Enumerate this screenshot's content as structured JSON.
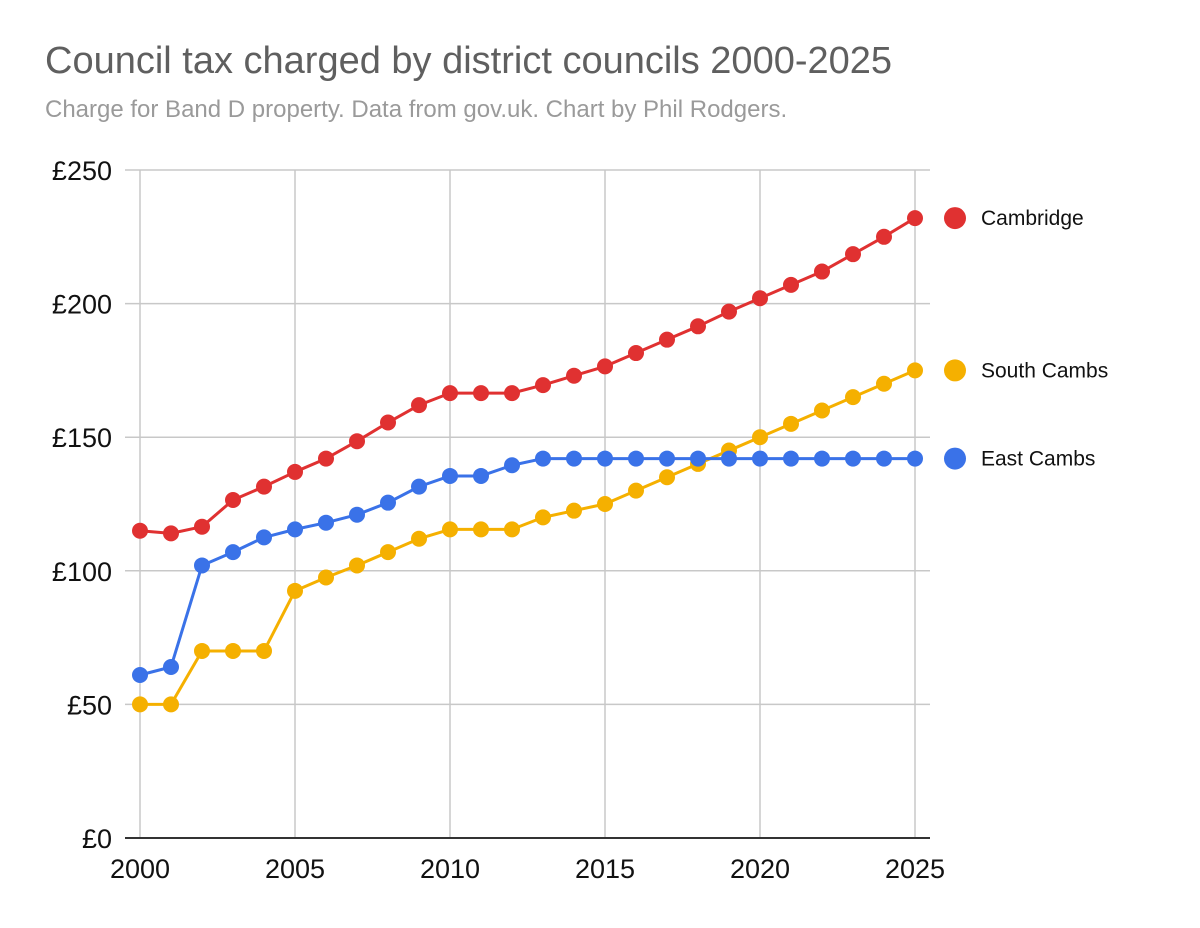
{
  "chart_data": {
    "type": "line",
    "title": "Council tax charged by district councils 2000-2025",
    "subtitle": "Charge for Band D property. Data from gov.uk. Chart by Phil Rodgers.",
    "xlabel": "",
    "ylabel": "",
    "x": [
      2000,
      2001,
      2002,
      2003,
      2004,
      2005,
      2006,
      2007,
      2008,
      2009,
      2010,
      2011,
      2012,
      2013,
      2014,
      2015,
      2016,
      2017,
      2018,
      2019,
      2020,
      2021,
      2022,
      2023,
      2024,
      2025
    ],
    "x_ticks": [
      2000,
      2005,
      2010,
      2015,
      2020,
      2025
    ],
    "x_tick_labels": [
      "2000",
      "2005",
      "2010",
      "2015",
      "2020",
      "2025"
    ],
    "xlim": [
      2000,
      2025
    ],
    "y_ticks": [
      0,
      50,
      100,
      150,
      200,
      250
    ],
    "y_tick_labels": [
      "£0",
      "£50",
      "£100",
      "£150",
      "£200",
      "£250"
    ],
    "ylim": [
      0,
      250
    ],
    "grid": true,
    "legend_position": "right",
    "series": [
      {
        "name": "Cambridge",
        "color": "#e03131",
        "values": [
          115,
          114,
          116.5,
          126.5,
          131.5,
          137,
          142,
          148.5,
          155.5,
          162,
          166.5,
          166.5,
          166.5,
          169.5,
          173,
          176.5,
          181.5,
          186.5,
          191.5,
          197,
          202,
          207,
          212,
          218.5,
          225,
          232
        ]
      },
      {
        "name": "South Cambs",
        "color": "#f5b000",
        "values": [
          50,
          50,
          70,
          70,
          70,
          92.5,
          97.5,
          102,
          107,
          112,
          115.5,
          115.5,
          115.5,
          120,
          122.5,
          125,
          130,
          135,
          140,
          145,
          150,
          155,
          160,
          165,
          170,
          175
        ]
      },
      {
        "name": "East Cambs",
        "color": "#3a72e8",
        "values": [
          61,
          64,
          102,
          107,
          112.5,
          115.5,
          118,
          121,
          125.5,
          131.5,
          135.5,
          135.5,
          139.5,
          142,
          142,
          142,
          142,
          142,
          142,
          142,
          142,
          142,
          142,
          142,
          142,
          142
        ]
      }
    ]
  }
}
